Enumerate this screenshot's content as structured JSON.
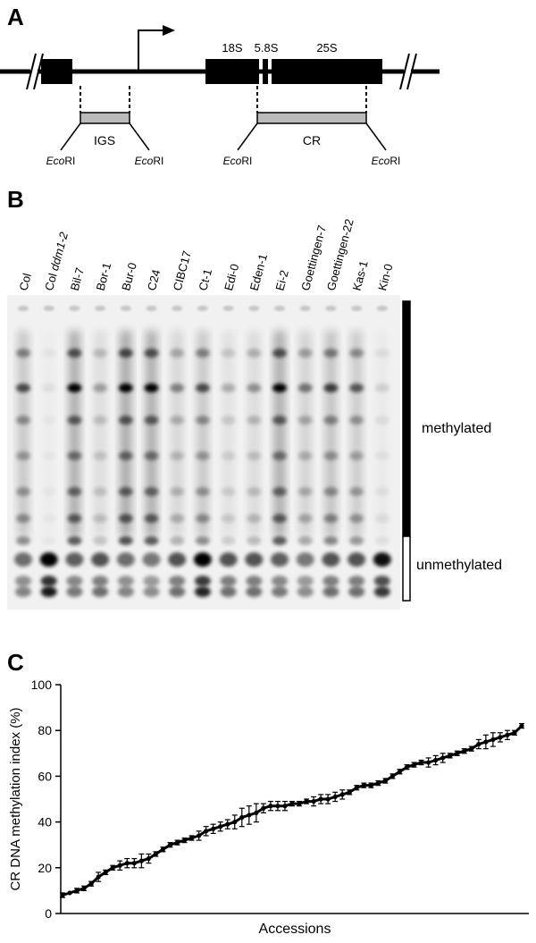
{
  "panels": {
    "a": "A",
    "b": "B",
    "c": "C"
  },
  "diagram": {
    "genes": [
      "18S",
      "5.8S",
      "25S"
    ],
    "fragments": [
      "IGS",
      "CR"
    ],
    "enzyme_prefix": "Eco",
    "enzyme_suffix": "RI"
  },
  "gel": {
    "lanes": [
      {
        "label": "Col",
        "italic": ""
      },
      {
        "label": "Col ",
        "italic": "ddm1-2"
      },
      {
        "label": "Bil-7",
        "italic": ""
      },
      {
        "label": "Bor-1",
        "italic": ""
      },
      {
        "label": "Bur-0",
        "italic": ""
      },
      {
        "label": "C24",
        "italic": ""
      },
      {
        "label": "CIBC17",
        "italic": ""
      },
      {
        "label": "Ct-1",
        "italic": ""
      },
      {
        "label": "Edi-0",
        "italic": ""
      },
      {
        "label": "Eden-1",
        "italic": ""
      },
      {
        "label": "Ei-2",
        "italic": ""
      },
      {
        "label": "Goettingen-7",
        "italic": ""
      },
      {
        "label": "Goettingen-22",
        "italic": ""
      },
      {
        "label": "Kas-1",
        "italic": ""
      },
      {
        "label": "Kin-0",
        "italic": ""
      }
    ],
    "methylated_label": "methylated",
    "unmethylated_label": "unmethylated"
  },
  "chart_data": {
    "type": "line",
    "title": "",
    "xlabel": "Accessions",
    "ylabel": "CR DNA methylation index (%)",
    "ylim": [
      0,
      100
    ],
    "yticks": [
      0,
      20,
      40,
      60,
      80,
      100
    ],
    "grid": false,
    "series": [
      {
        "values": [
          8,
          9,
          10,
          11,
          13,
          16,
          18,
          20,
          21,
          22,
          22,
          23,
          24,
          26,
          28,
          30,
          31,
          32,
          33,
          34,
          36,
          37,
          38,
          39,
          40,
          42,
          43,
          44,
          46,
          47,
          47,
          47,
          48,
          48,
          49,
          49,
          50,
          50,
          51,
          52,
          53,
          55,
          56,
          56,
          57,
          58,
          60,
          62,
          64,
          65,
          66,
          66,
          67,
          68,
          69,
          70,
          71,
          72,
          74,
          75,
          76,
          77,
          78,
          79,
          82
        ],
        "errors": [
          1,
          0,
          1,
          1,
          1,
          2,
          1,
          1,
          2,
          2,
          2,
          3,
          2,
          1,
          1,
          1,
          1,
          1,
          1,
          2,
          2,
          2,
          2,
          2,
          3,
          4,
          4,
          4,
          2,
          2,
          2,
          2,
          1,
          1,
          1,
          2,
          2,
          2,
          2,
          2,
          1,
          1,
          1,
          1,
          1,
          1,
          1,
          1,
          1,
          1,
          1,
          2,
          2,
          2,
          1,
          1,
          1,
          1,
          2,
          3,
          3,
          2,
          2,
          1,
          1
        ]
      }
    ]
  }
}
